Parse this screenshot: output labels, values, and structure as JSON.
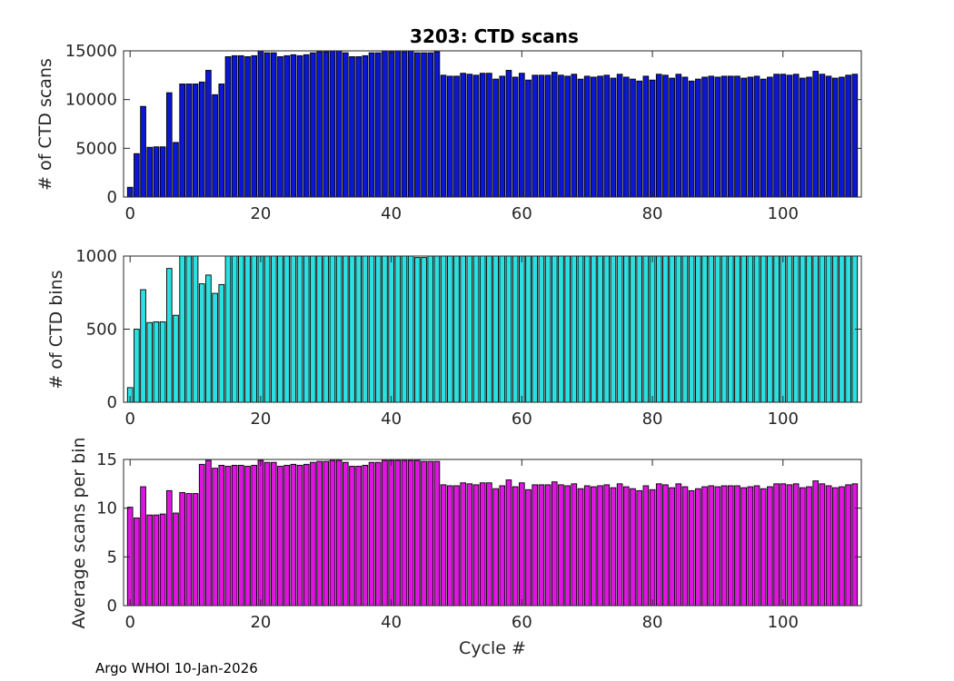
{
  "figure": {
    "title": "3203: CTD scans",
    "footer": "Argo WHOI 10-Jan-2026"
  },
  "chart_data": [
    {
      "type": "bar",
      "xlabel": "",
      "ylabel": "# of CTD scans",
      "xlim": [
        -1,
        112
      ],
      "ylim": [
        0,
        15000
      ],
      "xticks": [
        0,
        20,
        40,
        60,
        80,
        100
      ],
      "yticks": [
        0,
        5000,
        10000,
        15000
      ],
      "color": "#0c17d4",
      "x_start": 0,
      "values": [
        1000,
        4450,
        9300,
        5100,
        5150,
        5150,
        10700,
        5600,
        11600,
        11600,
        11600,
        11800,
        13000,
        10500,
        11600,
        14400,
        14500,
        14500,
        14400,
        14500,
        15000,
        14800,
        14800,
        14400,
        14500,
        14600,
        14500,
        14600,
        14800,
        14900,
        14900,
        15000,
        15000,
        14800,
        14400,
        14400,
        14500,
        14800,
        14800,
        15000,
        14900,
        15000,
        14900,
        15000,
        14800,
        14800,
        14800,
        14900,
        12500,
        12400,
        12400,
        12700,
        12600,
        12500,
        12700,
        12700,
        12100,
        12400,
        13000,
        12300,
        12700,
        12000,
        12500,
        12500,
        12500,
        12800,
        12500,
        12400,
        12600,
        12100,
        12400,
        12300,
        12400,
        12500,
        12200,
        12600,
        12300,
        12100,
        11900,
        12400,
        12000,
        12600,
        12500,
        12200,
        12600,
        12300,
        11900,
        12100,
        12300,
        12400,
        12300,
        12400,
        12400,
        12400,
        12200,
        12300,
        12400,
        12100,
        12300,
        12600,
        12600,
        12500,
        12600,
        12200,
        12300,
        12900,
        12600,
        12400,
        12200,
        12300,
        12500,
        12600
      ]
    },
    {
      "type": "bar",
      "xlabel": "",
      "ylabel": "# of CTD bins",
      "xlim": [
        -1,
        112
      ],
      "ylim": [
        0,
        1000
      ],
      "xticks": [
        0,
        20,
        40,
        60,
        80,
        100
      ],
      "yticks": [
        0,
        500,
        1000
      ],
      "color": "#2ae0e0",
      "x_start": 0,
      "values": [
        100,
        500,
        770,
        545,
        550,
        550,
        915,
        595,
        1005,
        1005,
        1005,
        810,
        870,
        745,
        805,
        1005,
        1005,
        1005,
        1005,
        1005,
        1005,
        1005,
        1005,
        1005,
        1005,
        1005,
        1005,
        1005,
        1005,
        1005,
        1005,
        1005,
        1005,
        1005,
        1005,
        1005,
        1005,
        1005,
        1005,
        1005,
        1005,
        1005,
        1005,
        1005,
        990,
        990,
        1005,
        1005,
        1005,
        1005,
        1005,
        1005,
        1005,
        1005,
        1005,
        1005,
        1005,
        1005,
        1005,
        1005,
        1005,
        1005,
        1005,
        1005,
        1005,
        1005,
        1005,
        1005,
        1000,
        1005,
        1005,
        1005,
        1005,
        1005,
        1005,
        1005,
        1005,
        1005,
        1005,
        1005,
        1005,
        1005,
        1000,
        1000,
        1005,
        1005,
        1005,
        1005,
        1005,
        1005,
        1005,
        1005,
        1005,
        1005,
        1005,
        1005,
        1005,
        1005,
        1005,
        1005,
        1005,
        1005,
        1005,
        1005,
        1005,
        1005,
        1005,
        1005,
        1005,
        1005,
        1005,
        1005
      ]
    },
    {
      "type": "bar",
      "xlabel": "Cycle #",
      "ylabel": "Average scans per bin",
      "xlim": [
        -1,
        112
      ],
      "ylim": [
        0,
        15
      ],
      "xticks": [
        0,
        20,
        40,
        60,
        80,
        100
      ],
      "yticks": [
        0,
        5,
        10,
        15
      ],
      "color": "#e014e0",
      "x_start": 0,
      "values": [
        10.1,
        9,
        12.2,
        9.3,
        9.3,
        9.4,
        11.8,
        9.5,
        11.6,
        11.5,
        11.5,
        14.5,
        14.9,
        14.1,
        14.4,
        14.3,
        14.4,
        14.4,
        14.3,
        14.4,
        14.9,
        14.7,
        14.7,
        14.3,
        14.4,
        14.5,
        14.4,
        14.5,
        14.7,
        14.8,
        14.8,
        14.9,
        14.9,
        14.7,
        14.3,
        14.3,
        14.4,
        14.7,
        14.7,
        14.9,
        14.9,
        14.9,
        14.9,
        14.9,
        14.9,
        14.8,
        14.8,
        14.8,
        12.4,
        12.3,
        12.3,
        12.6,
        12.5,
        12.4,
        12.6,
        12.6,
        12,
        12.3,
        12.9,
        12.2,
        12.6,
        11.9,
        12.4,
        12.4,
        12.4,
        12.7,
        12.4,
        12.3,
        12.5,
        12,
        12.3,
        12.2,
        12.3,
        12.4,
        12.1,
        12.5,
        12.2,
        12,
        11.8,
        12.3,
        11.9,
        12.5,
        12.4,
        12.1,
        12.5,
        12.2,
        11.8,
        12,
        12.2,
        12.3,
        12.2,
        12.3,
        12.3,
        12.3,
        12.1,
        12.2,
        12.3,
        12,
        12.2,
        12.5,
        12.5,
        12.4,
        12.5,
        12.1,
        12.2,
        12.8,
        12.5,
        12.3,
        12.1,
        12.2,
        12.4,
        12.5
      ]
    }
  ]
}
